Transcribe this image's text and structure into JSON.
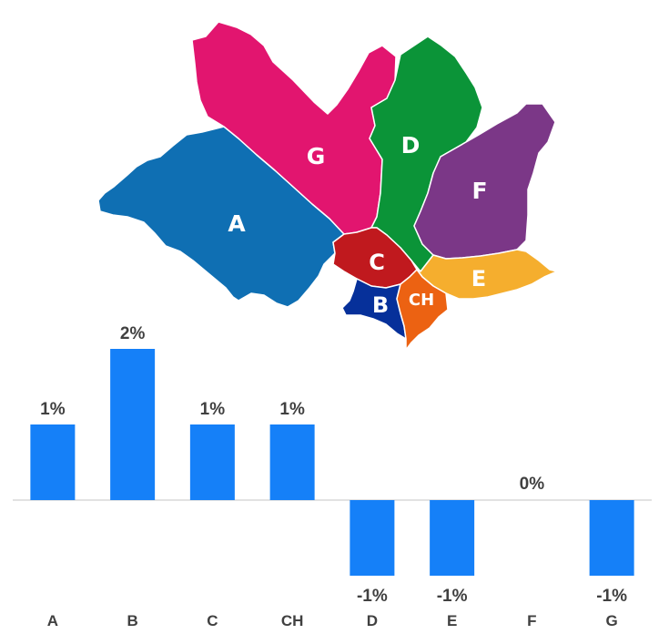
{
  "map": {
    "regions": [
      {
        "label": "A",
        "color": "#0f6fb3"
      },
      {
        "label": "G",
        "color": "#e2156f"
      },
      {
        "label": "D",
        "color": "#0b9438"
      },
      {
        "label": "F",
        "color": "#7b3787"
      },
      {
        "label": "C",
        "color": "#c0191e"
      },
      {
        "label": "E",
        "color": "#f5ae2e"
      },
      {
        "label": "B",
        "color": "#06309a"
      },
      {
        "label": "CH",
        "color": "#ec6212"
      }
    ]
  },
  "chart_data": {
    "type": "bar",
    "categories": [
      "A",
      "B",
      "C",
      "CH",
      "D",
      "E",
      "F",
      "G"
    ],
    "values": [
      1,
      2,
      1,
      1,
      -1,
      -1,
      0,
      -1
    ],
    "value_labels": [
      "1%",
      "2%",
      "1%",
      "1%",
      "-1%",
      "-1%",
      "0%",
      "-1%"
    ],
    "ylim": [
      -1,
      2
    ],
    "bar_color": "#1580f8",
    "grid": false,
    "title": "",
    "xlabel": "",
    "ylabel": ""
  }
}
